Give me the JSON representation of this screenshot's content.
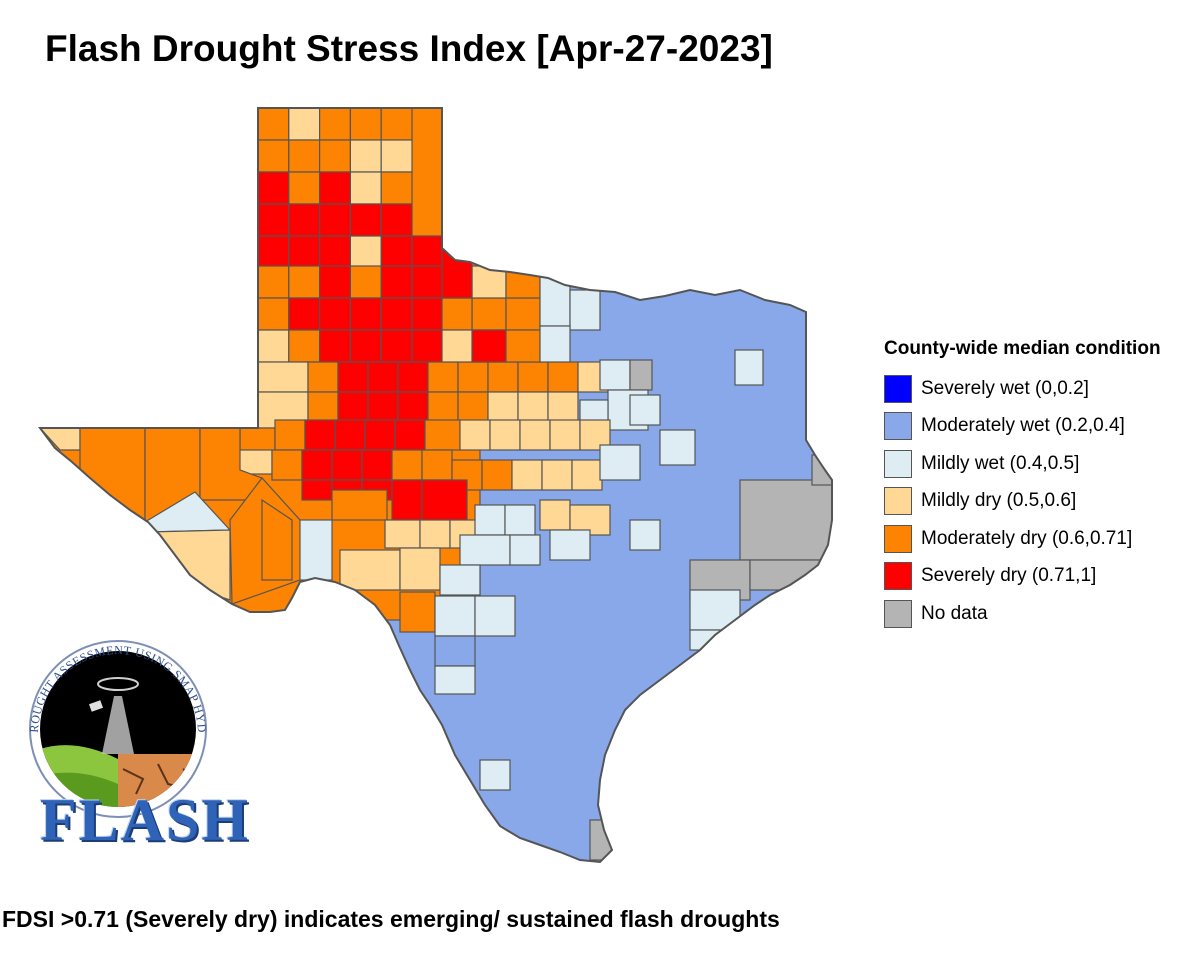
{
  "title": "Flash Drought Stress Index [Apr-27-2023]",
  "legend": {
    "title": "County-wide median condition",
    "items": [
      {
        "label": "Severely wet (0,0.2]",
        "color": "#0000ff"
      },
      {
        "label": "Moderately wet (0.2,0.4]",
        "color": "#88a8ea"
      },
      {
        "label": "Mildly wet (0.4,0.5]",
        "color": "#ddedf3"
      },
      {
        "label": "Mildly dry (0.5,0.6]",
        "color": "#fed894"
      },
      {
        "label": "Moderately dry (0.6,0.71]",
        "color": "#fd8303"
      },
      {
        "label": "Severely dry (0.71,1]",
        "color": "#ff0000"
      },
      {
        "label": "No data",
        "color": "#b4b4b4"
      }
    ]
  },
  "footnote": "FDSI >0.71 (Severely dry) indicates emerging/ sustained flash droughts",
  "logo": {
    "wordmark": "FLASH",
    "arc_text": "FLASH DROUGHT ASSESSMENT USING SMAP HYDROLOGY"
  }
}
